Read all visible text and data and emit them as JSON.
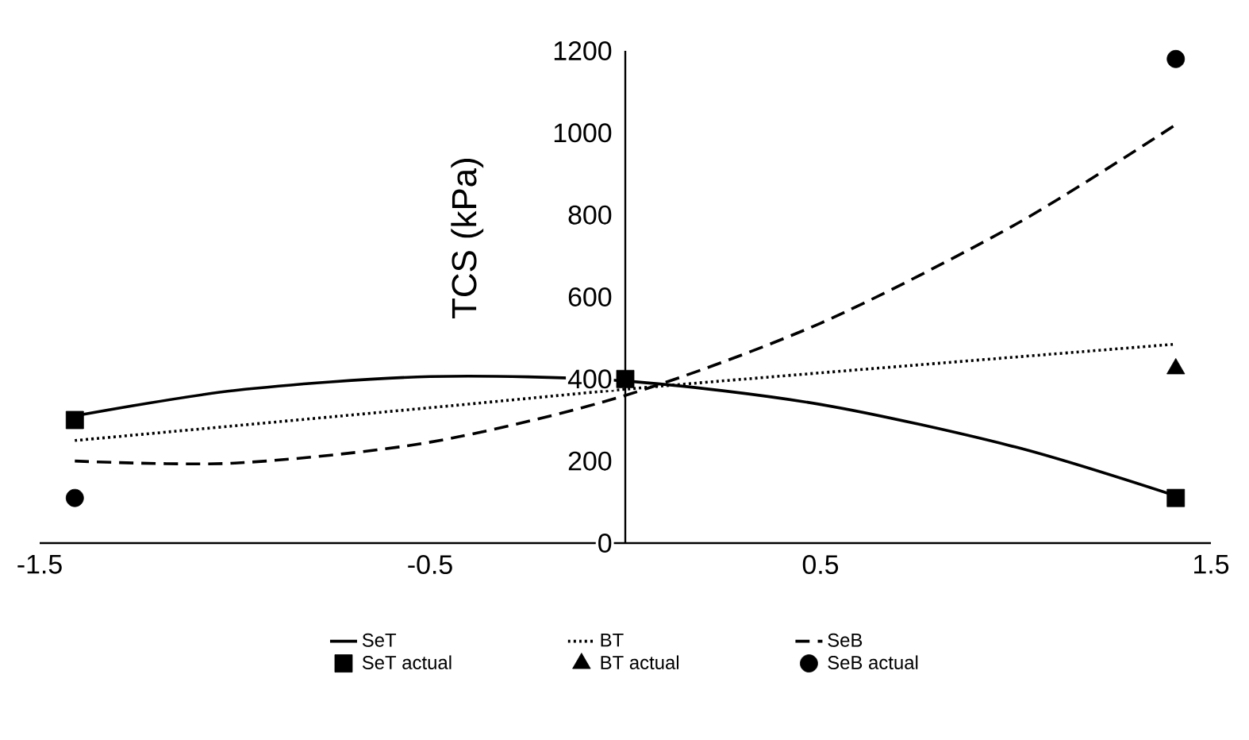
{
  "chart_data": {
    "type": "line",
    "ylabel": "TCS (kPa)",
    "xlim": [
      -1.5,
      1.5
    ],
    "xticks": [
      -1.5,
      -0.5,
      0.5,
      1.5
    ],
    "ylim": [
      0,
      1200
    ],
    "yticks": [
      0,
      200,
      400,
      600,
      800,
      1000,
      1200
    ],
    "legend": "bottom",
    "series": [
      {
        "name": "SeT",
        "type": "line",
        "color": "#000000",
        "line_style": "solid",
        "marker": "none",
        "x": [
          -1.41,
          -1,
          -0.5,
          0,
          0.5,
          1,
          1.41
        ],
        "values": [
          310,
          372,
          406,
          395,
          338,
          234,
          115
        ]
      },
      {
        "name": "BT",
        "type": "line",
        "color": "#000000",
        "line_style": "dotted",
        "marker": "none",
        "x": [
          -1.41,
          -0.5,
          0,
          0.5,
          1.41
        ],
        "values": [
          250,
          330,
          375,
          415,
          485
        ]
      },
      {
        "name": "SeB",
        "type": "line",
        "color": "#000000",
        "line_style": "dashed",
        "marker": "none",
        "x": [
          -1.41,
          -1,
          -0.5,
          0,
          0.5,
          1,
          1.41
        ],
        "values": [
          200,
          195,
          246,
          360,
          536,
          777,
          1020
        ]
      },
      {
        "name": "SeT actual",
        "type": "scatter",
        "color": "#000000",
        "marker": "square",
        "x": [
          -1.41,
          0,
          1.41
        ],
        "values": [
          300,
          400,
          110
        ]
      },
      {
        "name": "BT actual",
        "type": "scatter",
        "color": "#000000",
        "marker": "triangle",
        "x": [
          1.41
        ],
        "values": [
          425
        ]
      },
      {
        "name": "SeB actual",
        "type": "scatter",
        "color": "#000000",
        "marker": "circle",
        "x": [
          -1.41,
          1.41
        ],
        "values": [
          110,
          1180
        ]
      }
    ]
  }
}
